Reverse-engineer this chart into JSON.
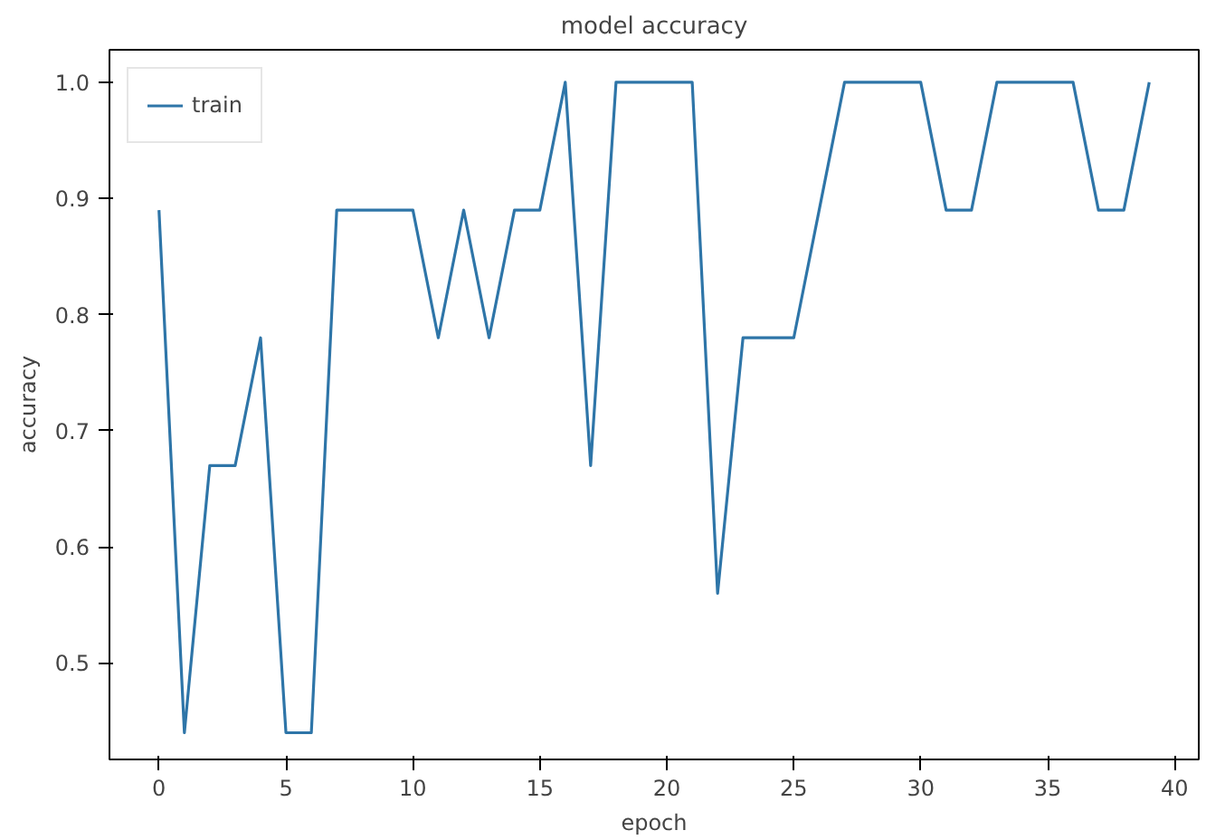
{
  "chart_data": {
    "type": "line",
    "title": "model accuracy",
    "xlabel": "epoch",
    "ylabel": "accuracy",
    "x": [
      0,
      1,
      2,
      3,
      4,
      5,
      6,
      7,
      8,
      9,
      10,
      11,
      12,
      13,
      14,
      15,
      16,
      17,
      18,
      19,
      20,
      21,
      22,
      23,
      24,
      25,
      26,
      27,
      28,
      29,
      30,
      31,
      32,
      33,
      34,
      35,
      36,
      37,
      38,
      39
    ],
    "series": [
      {
        "name": "train",
        "color": "#2e75a8",
        "values": [
          0.89,
          0.44,
          0.67,
          0.67,
          0.78,
          0.44,
          0.44,
          0.89,
          0.89,
          0.89,
          0.89,
          0.78,
          0.89,
          0.78,
          0.89,
          0.89,
          1.0,
          0.67,
          1.0,
          1.0,
          1.0,
          1.0,
          0.56,
          0.78,
          0.78,
          0.78,
          0.89,
          1.0,
          1.0,
          1.0,
          1.0,
          0.89,
          0.89,
          1.0,
          1.0,
          1.0,
          1.0,
          0.89,
          0.89,
          1.0
        ]
      }
    ],
    "xlim": [
      -1.95,
      40.95
    ],
    "ylim": [
      0.417,
      1.028
    ],
    "xticks": [
      0,
      5,
      10,
      15,
      20,
      25,
      30,
      35,
      40
    ],
    "yticks": [
      0.5,
      0.6,
      0.7,
      0.8,
      0.9,
      {
        "value": 1.0,
        "label": "1.0"
      }
    ],
    "grid": false,
    "legend": "top left",
    "line_style": "solid"
  }
}
